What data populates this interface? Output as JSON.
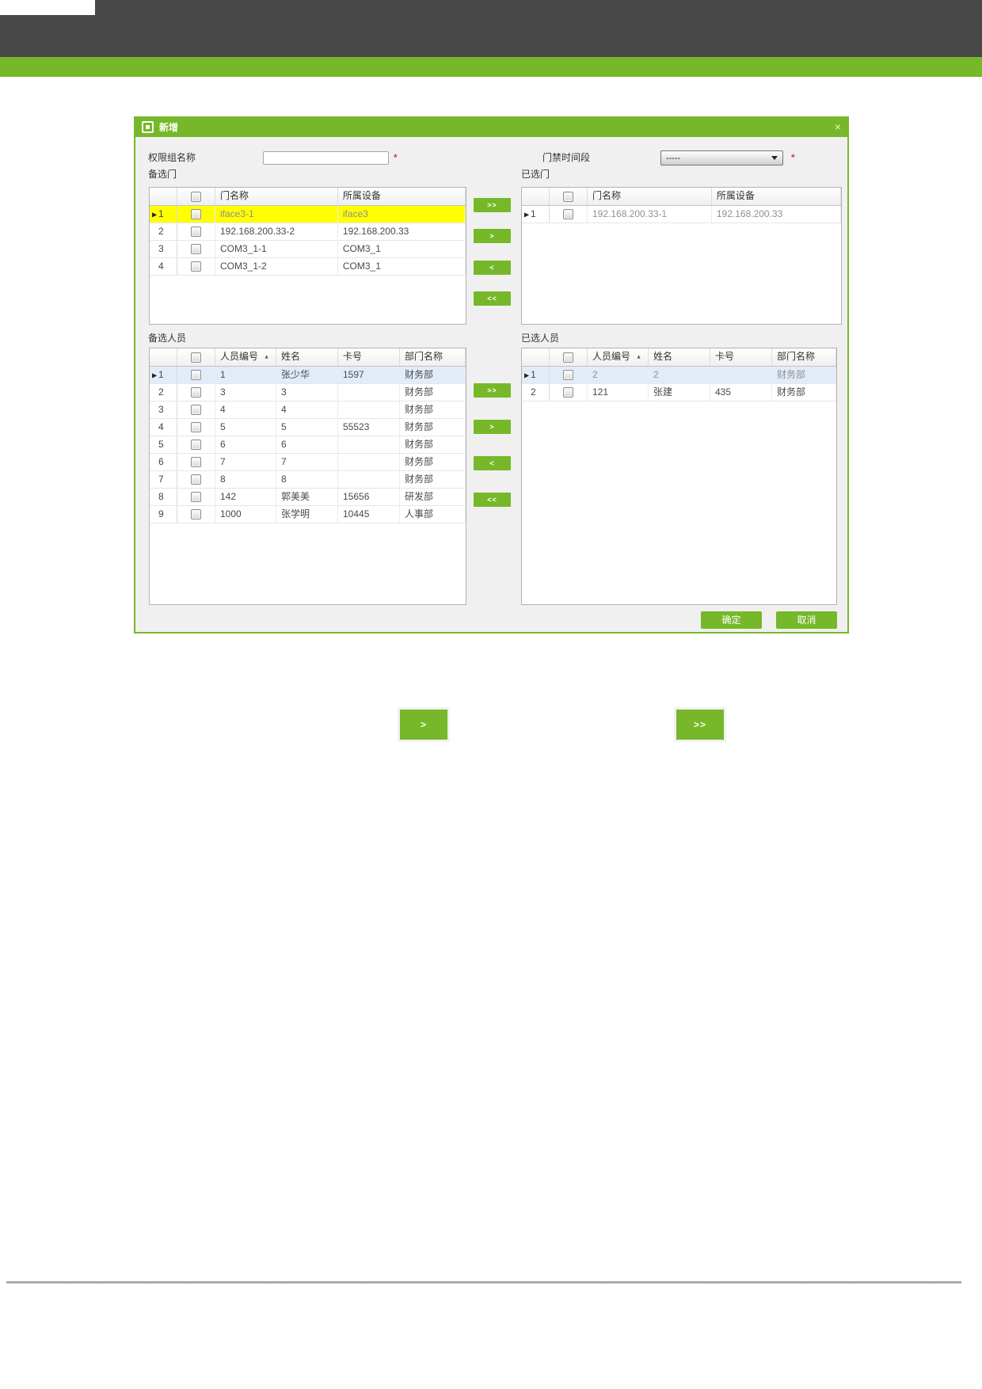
{
  "chrome": {
    "topbar_color": "#484848",
    "stripe_color": "#76b82a"
  },
  "dialog": {
    "title": "新增",
    "close_label": "×",
    "accent_color": "#76b82a",
    "highlight_yellow": "#ffff00",
    "highlight_blue": "#e2ecf9",
    "sort_indicator": "▲",
    "current_row_marker": "▶",
    "form": {
      "group_name_label": "权限组名称",
      "group_name_value": "",
      "group_name_required": "*",
      "timezone_label": "门禁时间段",
      "timezone_value": "-----",
      "timezone_required": "*"
    },
    "transfer_labels": {
      "all_right": ">>",
      "one_right": ">",
      "one_left": "<",
      "all_left": "<<"
    },
    "tables": {
      "available_doors": {
        "label": "备选门",
        "headers": [
          "门名称",
          "所属设备"
        ],
        "rows": [
          {
            "num": "1",
            "current": true,
            "highlight": "yellow",
            "muted": true,
            "cells": [
              "iface3-1",
              "iface3"
            ]
          },
          {
            "num": "2",
            "cells": [
              "192.168.200.33-2",
              "192.168.200.33"
            ]
          },
          {
            "num": "3",
            "cells": [
              "COM3_1-1",
              "COM3_1"
            ]
          },
          {
            "num": "4",
            "cells": [
              "COM3_1-2",
              "COM3_1"
            ]
          }
        ]
      },
      "selected_doors": {
        "label": "已选门",
        "headers": [
          "门名称",
          "所属设备"
        ],
        "rows": [
          {
            "num": "1",
            "current": true,
            "muted": true,
            "cells": [
              "192.168.200.33-1",
              "192.168.200.33"
            ]
          }
        ]
      },
      "available_people": {
        "label": "备选人员",
        "headers": [
          "人员编号",
          "姓名",
          "卡号",
          "部门名称"
        ],
        "sort_col": 0,
        "rows": [
          {
            "num": "1",
            "current": true,
            "highlight": "blue",
            "cells": [
              "1",
              "张少华",
              "1597",
              "财务部"
            ]
          },
          {
            "num": "2",
            "cells": [
              "3",
              "3",
              "",
              "财务部"
            ]
          },
          {
            "num": "3",
            "cells": [
              "4",
              "4",
              "",
              "财务部"
            ]
          },
          {
            "num": "4",
            "cells": [
              "5",
              "5",
              "55523",
              "财务部"
            ]
          },
          {
            "num": "5",
            "cells": [
              "6",
              "6",
              "",
              "财务部"
            ]
          },
          {
            "num": "6",
            "cells": [
              "7",
              "7",
              "",
              "财务部"
            ]
          },
          {
            "num": "7",
            "cells": [
              "8",
              "8",
              "",
              "财务部"
            ]
          },
          {
            "num": "8",
            "cells": [
              "142",
              "郭美美",
              "15656",
              "研发部"
            ]
          },
          {
            "num": "9",
            "cells": [
              "1000",
              "张学明",
              "10445",
              "人事部"
            ]
          }
        ]
      },
      "selected_people": {
        "label": "已选人员",
        "headers": [
          "人员编号",
          "姓名",
          "卡号",
          "部门名称"
        ],
        "sort_col": 0,
        "rows": [
          {
            "num": "1",
            "current": true,
            "highlight": "blue",
            "muted": true,
            "cells": [
              "2",
              "2",
              "",
              "财务部"
            ]
          },
          {
            "num": "2",
            "cells": [
              "121",
              "张建",
              "435",
              "财务部"
            ]
          }
        ]
      }
    },
    "buttons": {
      "ok": "确定",
      "cancel": "取消"
    }
  },
  "floating_buttons": {
    "one_right": ">",
    "all_right": ">>"
  }
}
